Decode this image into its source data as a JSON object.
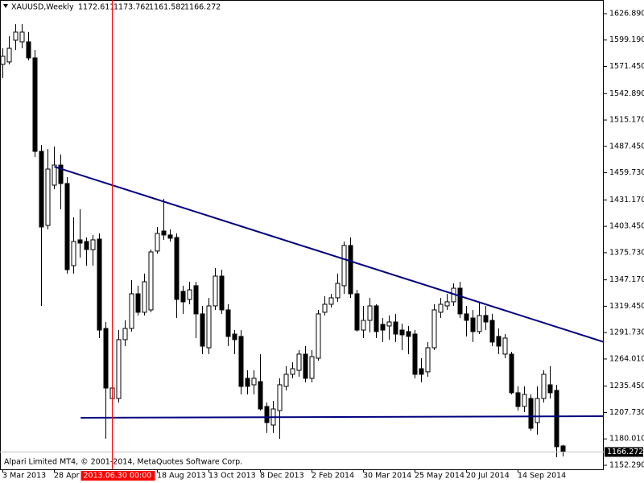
{
  "chart_data": {
    "type": "candlestick",
    "title": "XAUUSD,Weekly",
    "watermark": "Alpari Limited MT4, © 2001-2014, MetaQuotes Software Corp.",
    "categories": [
      "3 Mar 2013",
      null,
      null,
      null,
      null,
      null,
      null,
      null,
      "28 Apr 2013",
      null,
      null,
      null,
      null,
      null,
      null,
      null,
      null,
      null,
      null,
      null,
      null,
      null,
      null,
      null,
      "18 Aug 2013",
      null,
      null,
      null,
      null,
      null,
      null,
      null,
      "13 Oct 2013",
      null,
      null,
      null,
      null,
      null,
      null,
      null,
      "8 Dec 2013",
      null,
      null,
      null,
      null,
      null,
      null,
      null,
      "2 Feb 2014",
      null,
      null,
      null,
      null,
      null,
      null,
      null,
      "30 Mar 2014",
      null,
      null,
      null,
      null,
      null,
      null,
      null,
      "25 May 2014",
      null,
      null,
      null,
      null,
      null,
      null,
      null,
      "20 Jul 2014",
      null,
      null,
      null,
      null,
      null,
      null,
      null,
      "14 Sep 2014",
      null,
      null,
      null,
      null,
      null,
      null,
      null
    ],
    "open": [
      1573.6,
      1576.2,
      1599.0,
      1597.3,
      1597.3,
      1580.4,
      1482.2,
      1404.4,
      1446.7,
      1467.8,
      1448.4,
      1362.1,
      1389.2,
      1387.5,
      1379.0,
      1390.0,
      1296.1,
      1222.5,
      1222.5,
      1284.3,
      1296.1,
      1332.5,
      1313.1,
      1315.6,
      1377.4,
      1398.5,
      1394.3,
      1391.7,
      1335.1,
      1326.6,
      1341.0,
      1311.4,
      1275.8,
      1319.8,
      1351.1,
      1315.6,
      1290.2,
      1287.7,
      1243.7,
      1236.9,
      1240.3,
      1214.1,
      1194.6,
      1209.8,
      1235.2,
      1247.9,
      1252.1,
      1269.1,
      1243.7,
      1264.8,
      1313.1,
      1321.5,
      1328.3,
      1341.0,
      1383.3,
      1332.5,
      1294.4,
      1304.6,
      1319.8,
      1300.4,
      1298.7,
      1302.9,
      1294.4,
      1292.8,
      1290.2,
      1253.8,
      1250.5,
      1275.8,
      1313.1,
      1319.8,
      1324.1,
      1338.4,
      1311.4,
      1307.1,
      1292.8,
      1309.7,
      1304.6,
      1287.7,
      1269.1,
      1269.1,
      1228.5,
      1214.1,
      1222.5,
      1197.2,
      1222.5,
      1236.9,
      1231.0,
      1172.611
    ],
    "high": [
      1590.5,
      1603.2,
      1615.9,
      1615.9,
      1607.5,
      1588.8,
      1489.0,
      1484.8,
      1487.3,
      1478.9,
      1455.2,
      1412.9,
      1421.3,
      1391.7,
      1394.3,
      1396.0,
      1302.9,
      1247.9,
      1294.4,
      1304.6,
      1346.9,
      1341.0,
      1353.7,
      1379.0,
      1402.7,
      1432.3,
      1400.2,
      1396.0,
      1341.0,
      1345.2,
      1345.2,
      1319.8,
      1328.3,
      1359.6,
      1357.9,
      1321.5,
      1294.4,
      1294.4,
      1252.1,
      1252.1,
      1269.1,
      1218.3,
      1220.0,
      1243.7,
      1256.4,
      1260.6,
      1273.3,
      1277.5,
      1273.3,
      1315.6,
      1330.0,
      1332.5,
      1353.7,
      1387.5,
      1391.7,
      1336.7,
      1319.8,
      1328.3,
      1321.5,
      1307.1,
      1309.7,
      1311.4,
      1301.2,
      1298.7,
      1294.4,
      1264.8,
      1281.8,
      1321.5,
      1328.3,
      1332.5,
      1343.5,
      1345.2,
      1319.8,
      1315.6,
      1324.1,
      1319.8,
      1311.4,
      1296.1,
      1290.2,
      1271.6,
      1235.2,
      1235.2,
      1226.8,
      1235.2,
      1252.1,
      1256.4,
      1236.9,
      1173.762
    ],
    "low": [
      1559.2,
      1573.6,
      1588.8,
      1590.5,
      1577.8,
      1476.3,
      1319.8,
      1400.2,
      1442.5,
      1421.3,
      1353.7,
      1353.7,
      1370.6,
      1362.1,
      1362.1,
      1286.0,
      1180.2,
      1218.3,
      1218.3,
      1277.5,
      1292.8,
      1309.7,
      1309.7,
      1313.1,
      1374.8,
      1389.2,
      1387.5,
      1307.1,
      1311.4,
      1321.5,
      1286.0,
      1269.1,
      1269.1,
      1315.6,
      1311.4,
      1277.5,
      1269.1,
      1226.8,
      1226.8,
      1226.8,
      1209.8,
      1186.2,
      1186.2,
      1180.2,
      1231.0,
      1243.7,
      1245.4,
      1239.5,
      1239.5,
      1262.3,
      1309.7,
      1318.1,
      1324.1,
      1332.5,
      1328.3,
      1292.8,
      1286.0,
      1291.9,
      1286.0,
      1281.8,
      1284.3,
      1281.8,
      1273.3,
      1269.1,
      1243.7,
      1239.5,
      1245.4,
      1273.3,
      1307.1,
      1315.6,
      1319.8,
      1307.1,
      1287.7,
      1281.8,
      1290.2,
      1294.4,
      1277.5,
      1269.1,
      1264.8,
      1226.8,
      1209.8,
      1208.2,
      1188.7,
      1184.5,
      1218.3,
      1222.5,
      1160.8,
      1161.582
    ],
    "close": [
      1582.1,
      1590.5,
      1607.5,
      1607.5,
      1580.4,
      1482.2,
      1402.7,
      1463.6,
      1467.8,
      1448.4,
      1357.9,
      1387.5,
      1385.8,
      1379.0,
      1389.2,
      1294.4,
      1233.5,
      1233.5,
      1284.3,
      1296.1,
      1332.5,
      1313.1,
      1345.2,
      1376.5,
      1396.0,
      1394.3,
      1390.9,
      1326.6,
      1324.1,
      1336.7,
      1311.4,
      1277.5,
      1319.8,
      1351.1,
      1315.6,
      1287.7,
      1284.3,
      1235.2,
      1235.2,
      1243.7,
      1211.5,
      1197.2,
      1211.5,
      1236.9,
      1247.9,
      1253.8,
      1269.1,
      1243.7,
      1266.5,
      1311.4,
      1321.5,
      1328.3,
      1343.5,
      1383.3,
      1332.5,
      1294.4,
      1304.6,
      1319.8,
      1292.8,
      1294.4,
      1302.9,
      1290.2,
      1289.4,
      1287.7,
      1247.9,
      1247.9,
      1275.8,
      1315.6,
      1321.5,
      1324.1,
      1338.4,
      1311.4,
      1304.6,
      1292.8,
      1309.7,
      1302.9,
      1281.8,
      1277.5,
      1286.0,
      1228.5,
      1214.1,
      1226.8,
      1191.2,
      1222.5,
      1247.9,
      1228.5,
      1171.8,
      1166.272
    ],
    "ylim": [
      1148.06,
      1641.27
    ],
    "yticks": [
      {
        "value": 1626.89,
        "label": "1626.890"
      },
      {
        "value": 1599.19,
        "label": "1599.190"
      },
      {
        "value": 1571.45,
        "label": "1571.450"
      },
      {
        "value": 1542.89,
        "label": "1542.890"
      },
      {
        "value": 1515.17,
        "label": "1515.170"
      },
      {
        "value": 1487.45,
        "label": "1487.450"
      },
      {
        "value": 1459.73,
        "label": "1459.730"
      },
      {
        "value": 1431.17,
        "label": "1431.170"
      },
      {
        "value": 1403.45,
        "label": "1403.450"
      },
      {
        "value": 1375.73,
        "label": "1375.730"
      },
      {
        "value": 1347.17,
        "label": "1347.170"
      },
      {
        "value": 1319.45,
        "label": "1319.450"
      },
      {
        "value": 1291.73,
        "label": "1291.730"
      },
      {
        "value": 1264.01,
        "label": "1264.010"
      },
      {
        "value": 1235.45,
        "label": "1235.450"
      },
      {
        "value": 1207.73,
        "label": "1207.730"
      },
      {
        "value": 1180.01,
        "label": "1180.010"
      },
      {
        "value": 1152.29,
        "label": "1152.290"
      }
    ],
    "crosshair": {
      "category_index": 17,
      "label": "2013.06.30 00:00",
      "color": "#ff0000"
    },
    "trendlines": [
      {
        "points": [
          [
            8,
            1466.1
          ],
          [
            93.4,
            1281.7
          ]
        ],
        "color": "#000080"
      },
      {
        "points": [
          [
            12.1,
            1202.2
          ],
          [
            93.4,
            1203.9
          ]
        ],
        "color": "#000080"
      }
    ],
    "bull_color": "#ffffff",
    "bear_color": "#000000",
    "grid": false
  }
}
